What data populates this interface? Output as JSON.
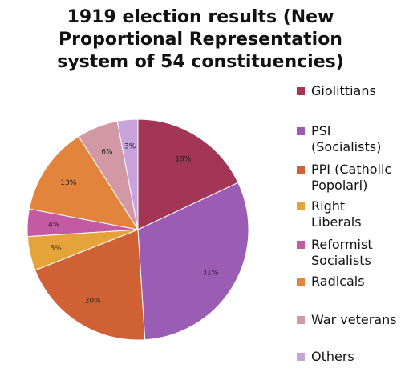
{
  "chart_data": {
    "type": "pie",
    "title_lines": [
      "1919 election results (New",
      "Proportional Representation",
      "system of 54 constituencies)"
    ],
    "start_angle_deg": 0,
    "direction": "clockwise",
    "slices": [
      {
        "name_lines": [
          "Giolittians"
        ],
        "value": 18,
        "label": "18%",
        "color": "#a33656"
      },
      {
        "name_lines": [
          "PSI",
          "(Socialists)"
        ],
        "value": 31,
        "label": "31%",
        "color": "#9b5cb4"
      },
      {
        "name_lines": [
          "PPI (Catholic",
          "Popolari)"
        ],
        "value": 20,
        "label": "20%",
        "color": "#d06134"
      },
      {
        "name_lines": [
          "Right",
          "Liberals"
        ],
        "value": 5,
        "label": "5%",
        "color": "#e4a43a"
      },
      {
        "name_lines": [
          "Reformist",
          "Socialists"
        ],
        "value": 4,
        "label": "4%",
        "color": "#c45aa3"
      },
      {
        "name_lines": [
          "Radicals"
        ],
        "value": 13,
        "label": "13%",
        "color": "#e2843b"
      },
      {
        "name_lines": [
          "War veterans"
        ],
        "value": 6,
        "label": "6%",
        "color": "#d398a6"
      },
      {
        "name_lines": [
          "Others"
        ],
        "value": 3,
        "label": "3%",
        "color": "#c8a3dc"
      }
    ],
    "legend_position": "right"
  }
}
